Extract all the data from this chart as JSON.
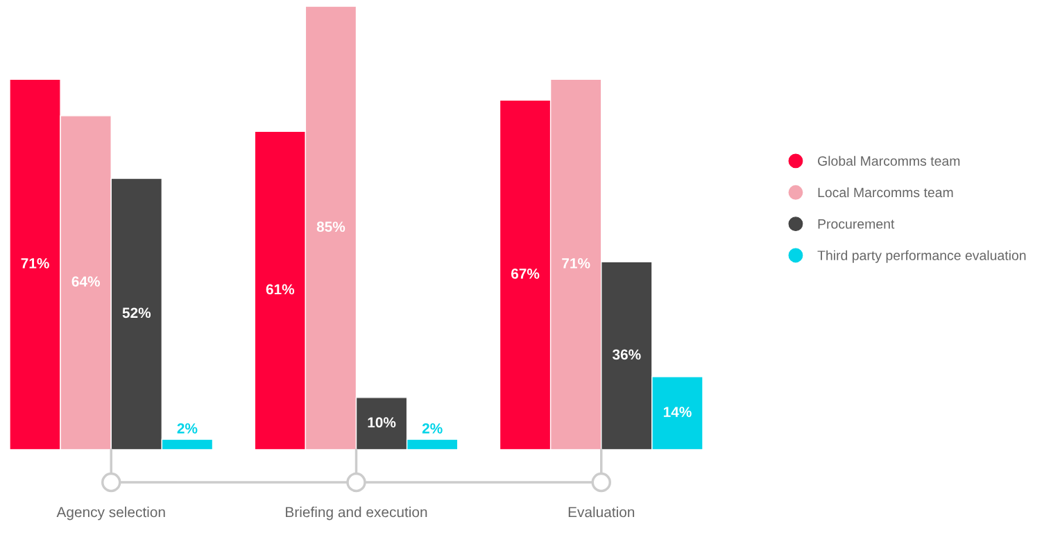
{
  "chart_data": {
    "type": "bar",
    "categories": [
      "Agency selection",
      "Briefing and execution",
      "Evaluation"
    ],
    "series": [
      {
        "name": "Global Marcomms team",
        "color": "#ff003c",
        "values": [
          71,
          61,
          67
        ],
        "value_labels": [
          "71%",
          "61%",
          "67%"
        ]
      },
      {
        "name": "Local Marcomms team",
        "color": "#f4a6b1",
        "values": [
          64,
          85,
          71
        ],
        "value_labels": [
          "64%",
          "85%",
          "71%"
        ]
      },
      {
        "name": "Procurement",
        "color": "#454545",
        "values": [
          52,
          10,
          36
        ],
        "value_labels": [
          "52%",
          "10%",
          "36%"
        ]
      },
      {
        "name": "Third party performance evaluation",
        "color": "#00d4e8",
        "values": [
          2,
          2,
          14
        ],
        "value_labels": [
          "2%",
          "2%",
          "14%"
        ]
      }
    ],
    "ylim": [
      0,
      85
    ],
    "legend": "right"
  }
}
